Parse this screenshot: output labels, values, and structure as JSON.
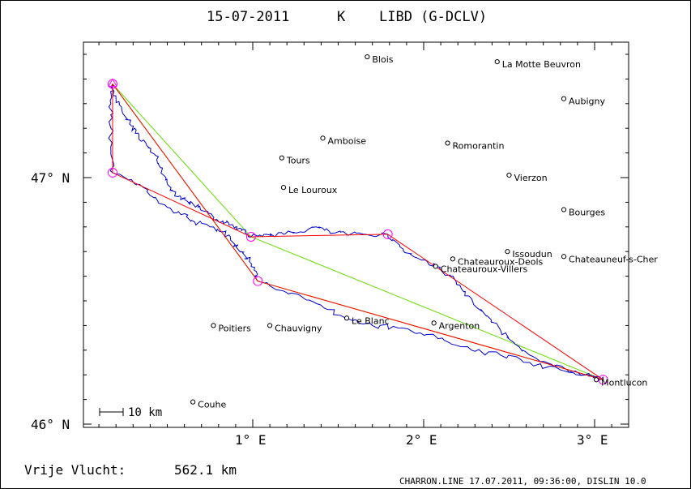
{
  "header": {
    "date": "15-07-2011",
    "class": "K",
    "airfield": "LIBD (G-DCLV)"
  },
  "axes": {
    "x_ticks": [
      {
        "value": 1,
        "label": "1° E"
      },
      {
        "value": 2,
        "label": "2° E"
      },
      {
        "value": 3,
        "label": "3° E"
      }
    ],
    "y_ticks": [
      {
        "value": 47,
        "label": "47° N"
      },
      {
        "value": 46,
        "label": "46° N"
      }
    ]
  },
  "scale_bar": {
    "label": "10 km"
  },
  "places": [
    {
      "name": "Blois",
      "lon": 1.67,
      "lat": 47.49
    },
    {
      "name": "La Motte Beuvron",
      "lon": 2.43,
      "lat": 47.47
    },
    {
      "name": "Aubigny",
      "lon": 2.82,
      "lat": 47.32
    },
    {
      "name": "Amboise",
      "lon": 1.41,
      "lat": 47.16
    },
    {
      "name": "Romorantin",
      "lon": 2.14,
      "lat": 47.14
    },
    {
      "name": "Tours",
      "lon": 1.17,
      "lat": 47.08
    },
    {
      "name": "Vierzon",
      "lon": 2.5,
      "lat": 47.01
    },
    {
      "name": "Le Louroux",
      "lon": 1.18,
      "lat": 46.96
    },
    {
      "name": "Bourges",
      "lon": 2.82,
      "lat": 46.87
    },
    {
      "name": "Issoudun",
      "lon": 2.49,
      "lat": 46.7
    },
    {
      "name": "Chateauroux-Deols",
      "lon": 2.17,
      "lat": 46.67
    },
    {
      "name": "Chateauneuf-s-Cher",
      "lon": 2.82,
      "lat": 46.68
    },
    {
      "name": "Chateauroux-Villers",
      "lon": 2.07,
      "lat": 46.64
    },
    {
      "name": "Le Blanc",
      "lon": 1.55,
      "lat": 46.43
    },
    {
      "name": "Argenton",
      "lon": 2.06,
      "lat": 46.41
    },
    {
      "name": "Poitiers",
      "lon": 0.77,
      "lat": 46.4
    },
    {
      "name": "Chauvigny",
      "lon": 1.1,
      "lat": 46.4
    },
    {
      "name": "Montlucon",
      "lon": 3.01,
      "lat": 46.18
    },
    {
      "name": "Couhe",
      "lon": 0.65,
      "lat": 46.09
    }
  ],
  "task_points": [
    {
      "lon": 0.18,
      "lat": 47.38
    },
    {
      "lon": 0.18,
      "lat": 47.02
    },
    {
      "lon": 0.99,
      "lat": 46.76
    },
    {
      "lon": 1.79,
      "lat": 46.77
    },
    {
      "lon": 3.05,
      "lat": 46.18
    },
    {
      "lon": 1.03,
      "lat": 46.58
    },
    {
      "lon": 0.18,
      "lat": 47.38
    }
  ],
  "green_legs": [
    {
      "from": {
        "lon": 0.18,
        "lat": 47.38
      },
      "to": {
        "lon": 0.99,
        "lat": 46.76
      }
    },
    {
      "from": {
        "lon": 0.99,
        "lat": 46.76
      },
      "to": {
        "lon": 3.05,
        "lat": 46.18
      }
    },
    {
      "from": {
        "lon": 3.05,
        "lat": 46.18
      },
      "to": {
        "lon": 1.03,
        "lat": 46.58
      }
    },
    {
      "from": {
        "lon": 1.03,
        "lat": 46.58
      },
      "to": {
        "lon": 0.18,
        "lat": 47.38
      }
    }
  ],
  "start_marker": {
    "lon": 0.18,
    "lat": 47.38
  },
  "track": [
    [
      0.18,
      47.38
    ],
    [
      0.2,
      47.32
    ],
    [
      0.24,
      47.26
    ],
    [
      0.29,
      47.21
    ],
    [
      0.33,
      47.18
    ],
    [
      0.38,
      47.13
    ],
    [
      0.43,
      47.09
    ],
    [
      0.46,
      47.04
    ],
    [
      0.49,
      46.99
    ],
    [
      0.53,
      46.95
    ],
    [
      0.58,
      46.92
    ],
    [
      0.63,
      46.9
    ],
    [
      0.68,
      46.88
    ],
    [
      0.74,
      46.85
    ],
    [
      0.79,
      46.83
    ],
    [
      0.85,
      46.82
    ],
    [
      0.9,
      46.8
    ],
    [
      0.94,
      46.79
    ],
    [
      0.99,
      46.76
    ],
    [
      1.08,
      46.77
    ],
    [
      1.18,
      46.77
    ],
    [
      1.28,
      46.78
    ],
    [
      1.37,
      46.8
    ],
    [
      1.45,
      46.78
    ],
    [
      1.55,
      46.77
    ],
    [
      1.66,
      46.77
    ],
    [
      1.79,
      46.77
    ],
    [
      1.86,
      46.72
    ],
    [
      1.94,
      46.68
    ],
    [
      2.02,
      46.66
    ],
    [
      2.07,
      46.64
    ],
    [
      2.16,
      46.6
    ],
    [
      2.22,
      46.55
    ],
    [
      2.29,
      46.49
    ],
    [
      2.37,
      46.44
    ],
    [
      2.45,
      46.38
    ],
    [
      2.53,
      46.33
    ],
    [
      2.62,
      46.28
    ],
    [
      2.72,
      46.25
    ],
    [
      2.84,
      46.22
    ],
    [
      2.94,
      46.2
    ],
    [
      3.0,
      46.19
    ],
    [
      3.05,
      46.18
    ],
    [
      2.95,
      46.2
    ],
    [
      2.8,
      46.22
    ],
    [
      2.62,
      46.25
    ],
    [
      2.45,
      46.28
    ],
    [
      2.28,
      46.3
    ],
    [
      2.12,
      46.34
    ],
    [
      1.98,
      46.37
    ],
    [
      1.85,
      46.39
    ],
    [
      1.7,
      46.4
    ],
    [
      1.55,
      46.43
    ],
    [
      1.42,
      46.47
    ],
    [
      1.3,
      46.51
    ],
    [
      1.18,
      46.54
    ],
    [
      1.03,
      46.58
    ],
    [
      1.02,
      46.62
    ],
    [
      0.98,
      46.66
    ],
    [
      0.93,
      46.7
    ],
    [
      0.88,
      46.74
    ],
    [
      0.83,
      46.78
    ],
    [
      0.75,
      46.8
    ],
    [
      0.66,
      46.82
    ],
    [
      0.58,
      46.85
    ],
    [
      0.5,
      46.88
    ],
    [
      0.43,
      46.92
    ],
    [
      0.36,
      46.96
    ],
    [
      0.27,
      46.99
    ],
    [
      0.18,
      47.02
    ],
    [
      0.17,
      47.1
    ],
    [
      0.17,
      47.2
    ],
    [
      0.17,
      47.3
    ],
    [
      0.18,
      47.38
    ]
  ],
  "footer": {
    "distance_label": "Vrije Vlucht:",
    "distance_value": "562.1 km",
    "credit": "CHARRON.LINE 17.07.2011, 09:36:00, DISLIN 10.0"
  },
  "colors": {
    "track": "#0000cc",
    "task_leg": "#ff0000",
    "green_leg": "#66dd00",
    "turnpoint": "#ff00ff",
    "frame": "#000000"
  }
}
